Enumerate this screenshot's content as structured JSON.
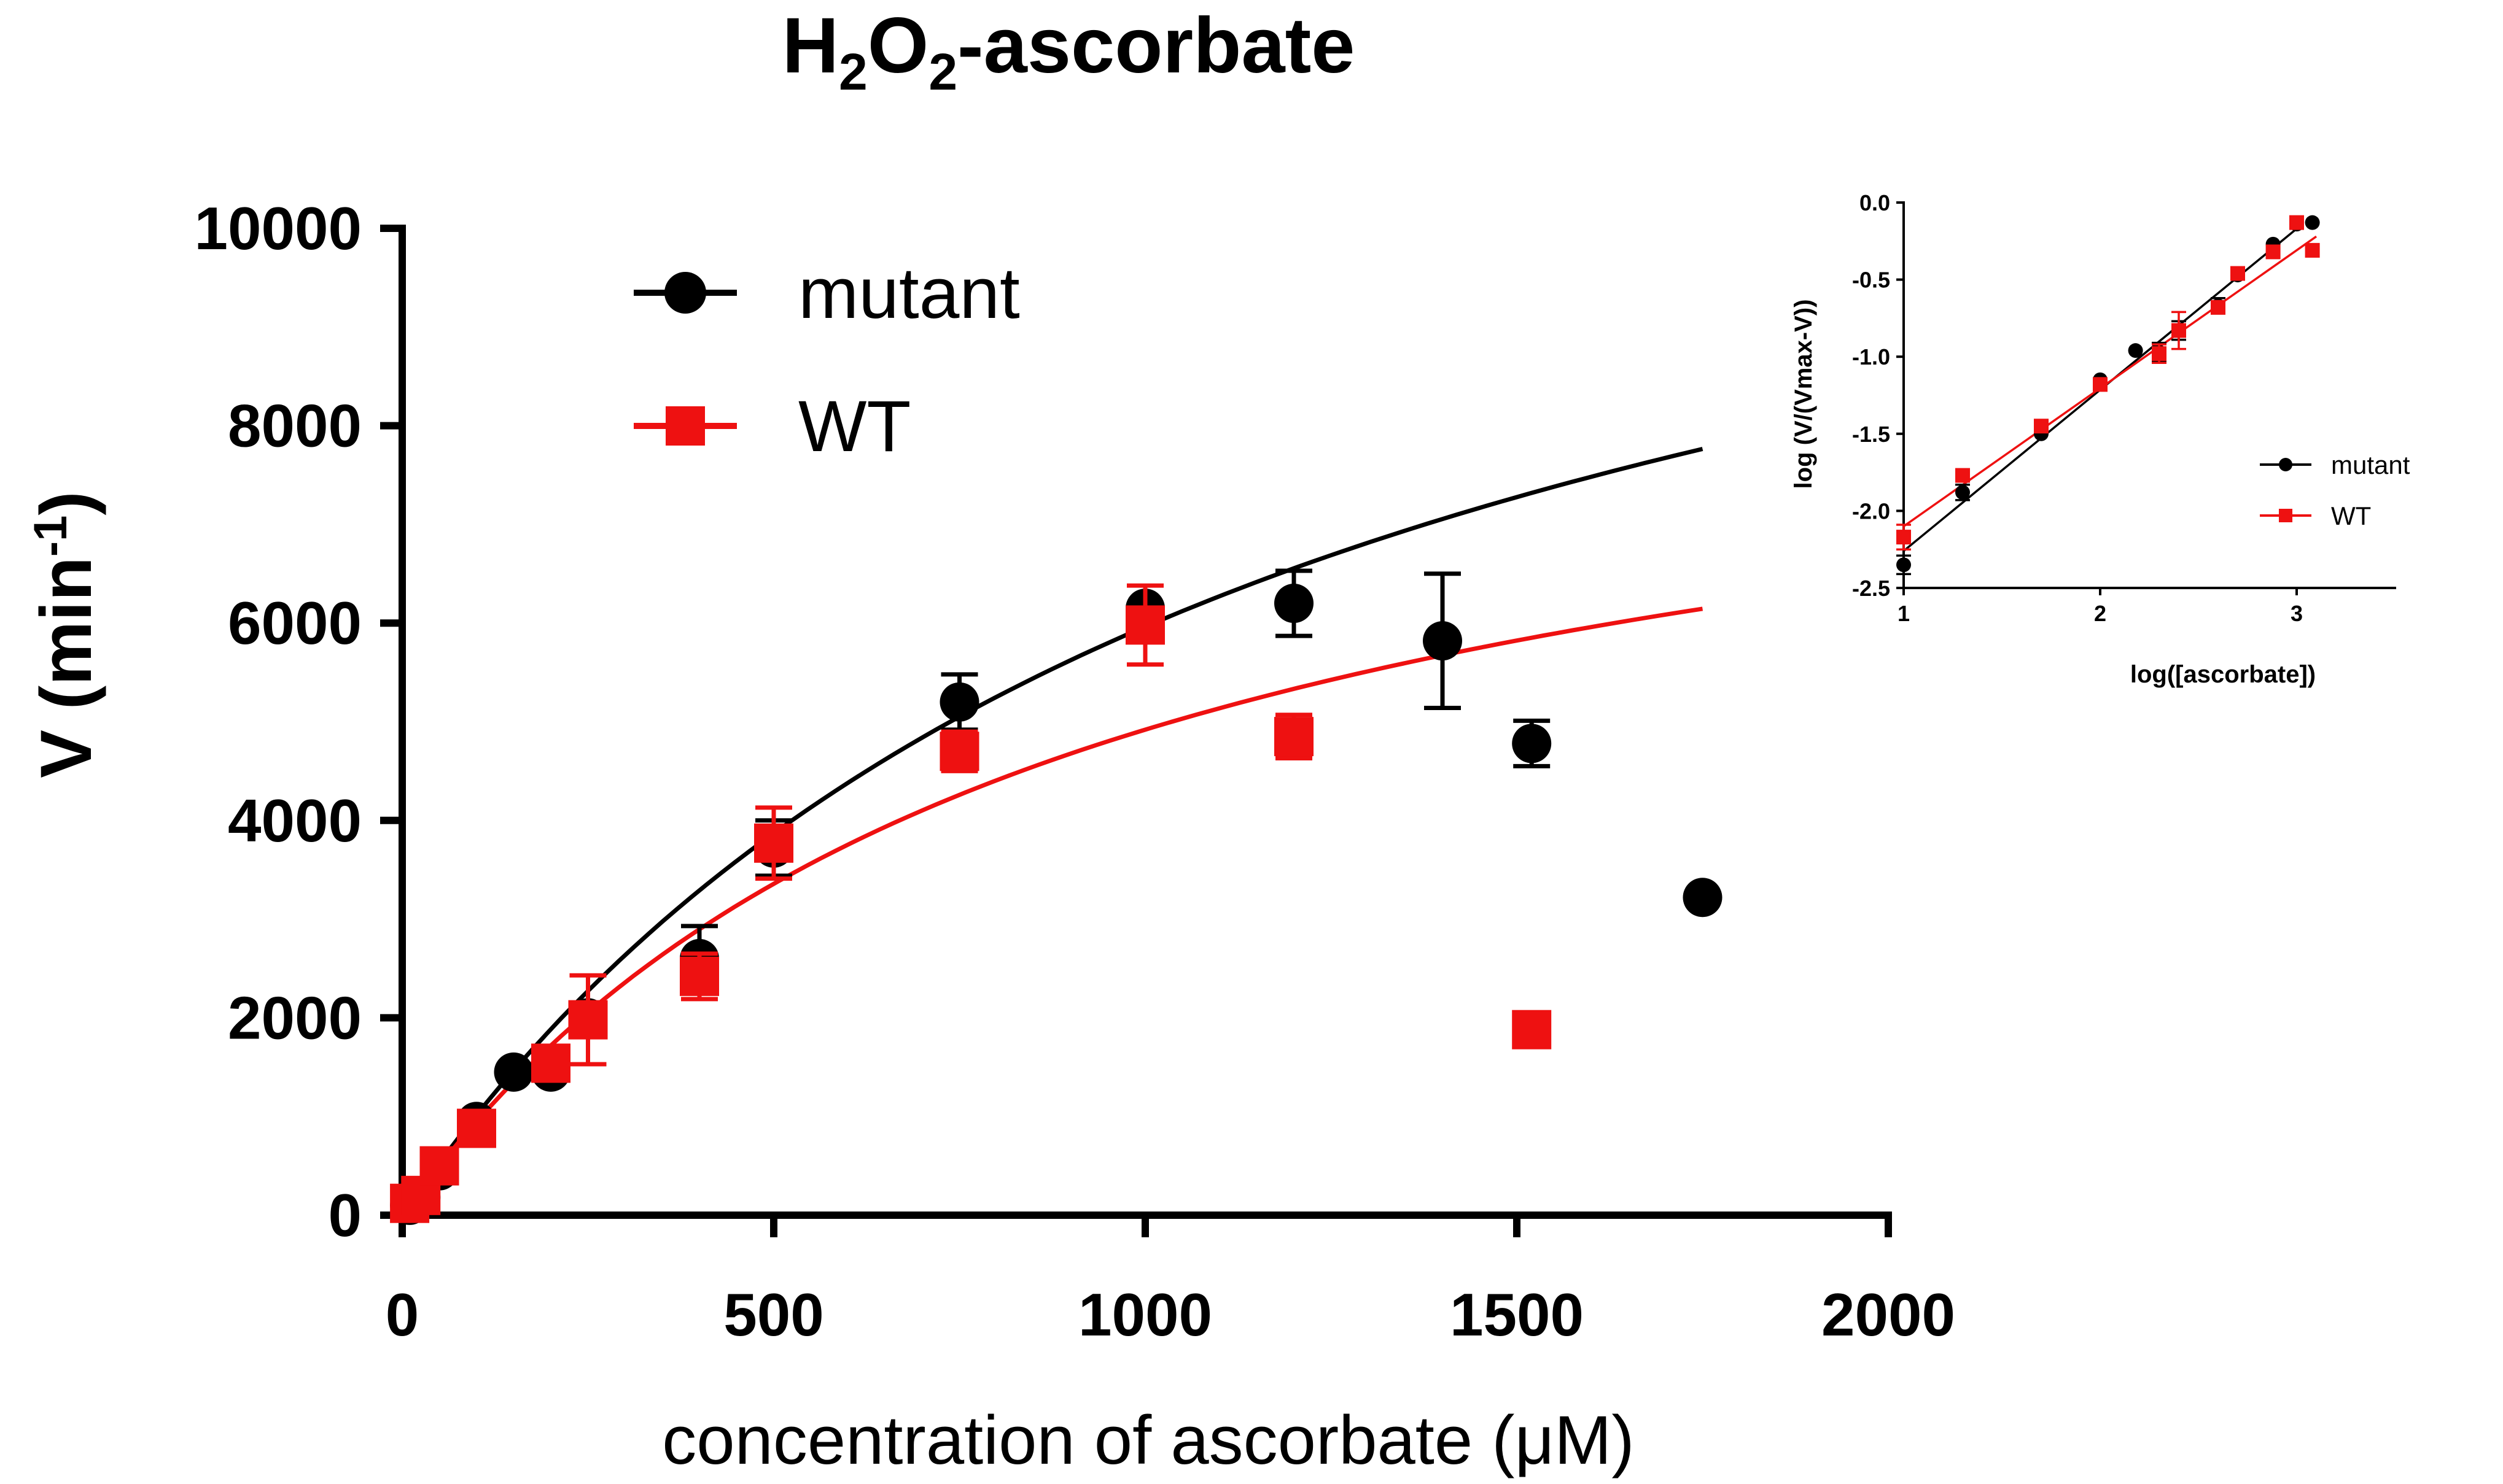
{
  "title": {
    "prefix_1": "H",
    "sub_1": "2",
    "middle": "O",
    "sub_2": "2",
    "suffix": "-ascorbate"
  },
  "colors": {
    "mutant": "#000000",
    "wt": "#ee1111",
    "axis": "#000000"
  },
  "chart_data": [
    {
      "type": "scatter",
      "name": "main",
      "xlabel": "concentration of ascorbate (μM)",
      "ylabel": {
        "prefix": "V (min",
        "superscript": "-1",
        "suffix": ")"
      },
      "xlim": [
        0,
        2000
      ],
      "ylim": [
        0,
        10000
      ],
      "xticks": [
        0,
        500,
        1000,
        1500,
        2000
      ],
      "yticks": [
        0,
        2000,
        4000,
        6000,
        8000,
        10000
      ],
      "legend_position": "top-left",
      "series": [
        {
          "name": "mutant",
          "marker": "circle",
          "color": "#000000",
          "x": [
            10,
            25,
            50,
            100,
            150,
            200,
            250,
            400,
            500,
            750,
            1000,
            1200,
            1400,
            1520,
            1750
          ],
          "y": [
            100,
            180,
            450,
            950,
            1450,
            1450,
            2000,
            2600,
            3720,
            5200,
            6150,
            6200,
            5820,
            4780,
            3220
          ],
          "err": [
            0,
            0,
            0,
            0,
            0,
            0,
            0,
            330,
            280,
            280,
            0,
            330,
            680,
            230,
            0
          ],
          "fit": {
            "vmax": 13000,
            "km": 1180,
            "x_end": 1750
          }
        },
        {
          "name": "WT",
          "marker": "square",
          "color": "#ee1111",
          "x": [
            10,
            25,
            50,
            100,
            200,
            250,
            400,
            500,
            750,
            1000,
            1200,
            1520
          ],
          "y": [
            120,
            200,
            500,
            880,
            1540,
            1980,
            2420,
            3770,
            4700,
            5980,
            4850,
            1880
          ],
          "err": [
            0,
            0,
            0,
            0,
            0,
            450,
            230,
            360,
            200,
            400,
            220,
            0
          ],
          "fit": {
            "vmax": 9200,
            "km": 870,
            "x_end": 1750
          }
        }
      ]
    },
    {
      "type": "scatter",
      "name": "inset",
      "xlabel": "log([ascorbate])",
      "ylabel": "log (V/(Vmax-V))",
      "xlim": [
        1,
        3.5
      ],
      "ylim": [
        -2.5,
        0
      ],
      "xticks": [
        1,
        2,
        3
      ],
      "yticks": [
        0.0,
        -0.5,
        -1.0,
        -1.5,
        -2.0,
        -2.5
      ],
      "ytick_labels": [
        "0.0",
        "-0.5",
        "-1.0",
        "-1.5",
        "-2.0",
        "-2.5"
      ],
      "legend_position": "right",
      "series": [
        {
          "name": "mutant",
          "marker": "circle",
          "color": "#000000",
          "x": [
            1.0,
            1.3,
            1.7,
            2.0,
            2.18,
            2.3,
            2.4,
            2.6,
            2.7,
            2.88,
            3.0,
            3.08
          ],
          "y": [
            -2.35,
            -1.88,
            -1.5,
            -1.15,
            -0.96,
            -0.97,
            -0.83,
            -0.67,
            -0.47,
            -0.27,
            -0.14,
            -0.13
          ],
          "err": [
            0.06,
            0.05,
            0.0,
            0.0,
            0.0,
            0.06,
            0.06,
            0.05,
            0.0,
            0.0,
            0.0,
            0.0
          ],
          "fit": {
            "x0": 1.0,
            "y0": -2.26,
            "x1": 3.0,
            "y1": -0.17
          }
        },
        {
          "name": "WT",
          "marker": "square",
          "color": "#ee1111",
          "x": [
            1.0,
            1.3,
            1.7,
            2.0,
            2.3,
            2.4,
            2.6,
            2.7,
            2.88,
            3.0,
            3.08
          ],
          "y": [
            -2.17,
            -1.77,
            -1.45,
            -1.18,
            -0.98,
            -0.83,
            -0.68,
            -0.46,
            -0.32,
            -0.13,
            -0.31
          ],
          "err": [
            0.08,
            0.0,
            0.0,
            0.0,
            0.06,
            0.12,
            0.0,
            0.0,
            0.0,
            0.0,
            0.0
          ],
          "fit": {
            "x0": 1.0,
            "y0": -2.1,
            "x1": 3.1,
            "y1": -0.22
          }
        }
      ]
    }
  ]
}
